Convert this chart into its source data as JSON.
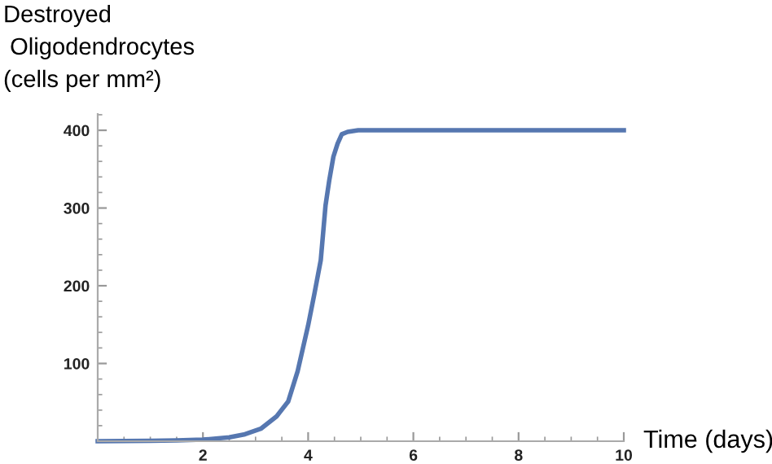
{
  "chart_data": {
    "type": "line",
    "ylabel": "Destroyed\n Oligodendrocytes\n(cells per mm²)",
    "xlabel": "Time (days)",
    "x": [
      0,
      0.5,
      1,
      1.5,
      2,
      2.5,
      2.8,
      3.1,
      3.4,
      3.62,
      3.8,
      4,
      4.12,
      4.24,
      4.33,
      4.4,
      4.48,
      4.56,
      4.64,
      4.75,
      4.85,
      4.95,
      5.2,
      6,
      8,
      10
    ],
    "series": [
      {
        "color": "#5677b0",
        "values": [
          0,
          0.3,
          0.6,
          1,
          2,
          5,
          9,
          16,
          32,
          51,
          90,
          149,
          190,
          233,
          303,
          335,
          366,
          383,
          395,
          398,
          399,
          400,
          400,
          400,
          400,
          400
        ]
      }
    ],
    "xlim": [
      0,
      10
    ],
    "ylim": [
      0,
      421
    ],
    "xticks": [
      2,
      4,
      6,
      8,
      10
    ],
    "yticks": [
      100,
      200,
      300,
      400
    ],
    "grid": false,
    "legend": false,
    "marker": "none",
    "line_style": "solid"
  }
}
